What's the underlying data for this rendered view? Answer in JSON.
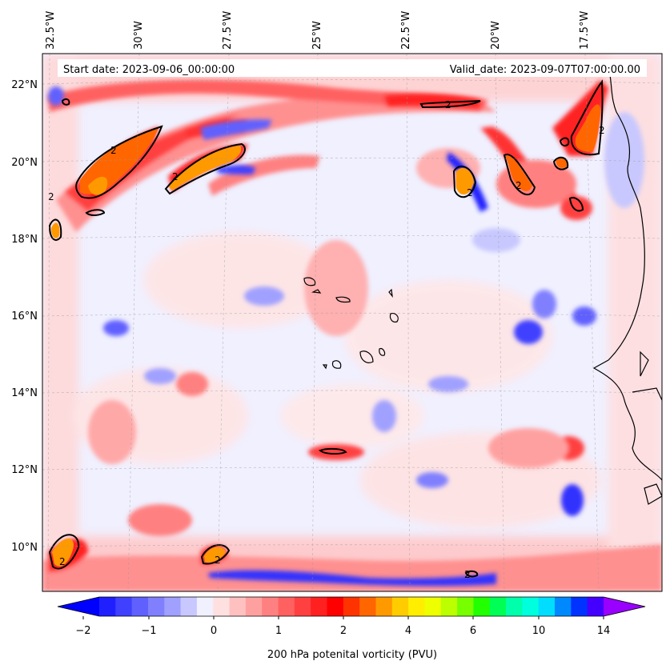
{
  "header": {
    "start_date": "Start date: 2023-09-06_00:00:00",
    "valid_date": "Valid_date: 2023-09-07T07:00:00.00"
  },
  "map": {
    "lon_labels": [
      "32.5°W",
      "30°W",
      "27.5°W",
      "25°W",
      "22.5°W",
      "20°W",
      "17.5°W"
    ],
    "lat_labels": [
      "22°N",
      "20°N",
      "18°N",
      "16°N",
      "14°N",
      "12°N",
      "10°N"
    ],
    "contour_label": "2",
    "background_color": "#f0f0ff",
    "projection": "lat-lon (slightly curved)",
    "gridlines": true
  },
  "colorbar": {
    "tick_labels": [
      "−2",
      "−1",
      "0",
      "1",
      "2",
      "4",
      "6",
      "10",
      "14"
    ],
    "label": "200 hPa potenital vorticity (PVU)",
    "colors": [
      "#0000ff",
      "#2020ff",
      "#4040ff",
      "#6060ff",
      "#8080ff",
      "#a0a0ff",
      "#c8c8ff",
      "#f0f0ff",
      "#ffe0e0",
      "#ffc0c0",
      "#ffa0a0",
      "#ff8080",
      "#ff6060",
      "#ff4040",
      "#ff2020",
      "#ff0000",
      "#ff3300",
      "#ff6600",
      "#ff9900",
      "#ffcc00",
      "#ffee00",
      "#eeff00",
      "#bbff00",
      "#77ff00",
      "#22ff00",
      "#00ff55",
      "#00ffaa",
      "#00ffdd",
      "#00ddff",
      "#0088ff",
      "#0033ff",
      "#4400ff",
      "#9900ff"
    ],
    "extend": "both"
  }
}
